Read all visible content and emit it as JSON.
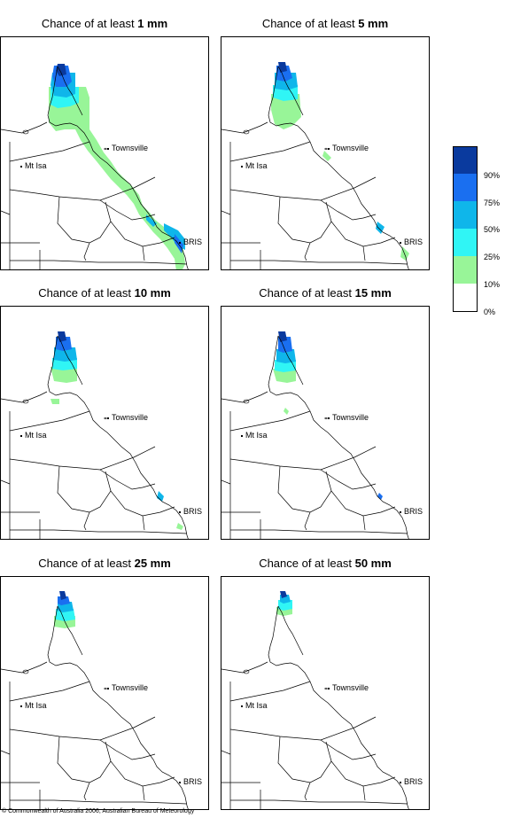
{
  "panels": [
    {
      "prefix": "Chance of at least ",
      "amount": "1 mm",
      "labels": {
        "townsville": "Townsville",
        "mtisa": "Mt Isa",
        "bris": "BRIS"
      }
    },
    {
      "prefix": "Chance of at least ",
      "amount": "5 mm",
      "labels": {
        "townsville": "Townsville",
        "mtisa": "Mt Isa",
        "bris": "BRIS"
      }
    },
    {
      "prefix": "Chance of at least ",
      "amount": "10 mm",
      "labels": {
        "townsville": "Townsville",
        "mtisa": "Mt Isa",
        "bris": "BRIS"
      }
    },
    {
      "prefix": "Chance of at least ",
      "amount": "15 mm",
      "labels": {
        "townsville": "Townsville",
        "mtisa": "Mt Isa",
        "bris": "BRIS"
      }
    },
    {
      "prefix": "Chance of at least ",
      "amount": "25 mm",
      "labels": {
        "townsville": "Townsville",
        "mtisa": "Mt Isa",
        "bris": "BRIS"
      }
    },
    {
      "prefix": "Chance of at least ",
      "amount": "50 mm",
      "labels": {
        "townsville": "Townsville",
        "mtisa": "Mt Isa",
        "bris": "BRIS"
      }
    }
  ],
  "legend": {
    "classes": [
      {
        "range": "> 90%",
        "color": "#0a3a9e"
      },
      {
        "range": "75-90%",
        "color": "#1a6ff0"
      },
      {
        "range": "50-75%",
        "color": "#0fb6ea"
      },
      {
        "range": "25-50%",
        "color": "#30f5f5"
      },
      {
        "range": "10-25%",
        "color": "#98f598"
      },
      {
        "range": "0-10%",
        "color": "#ffffff"
      }
    ],
    "ticks": [
      "90%",
      "75%",
      "50%",
      "25%",
      "10%",
      "0%"
    ]
  },
  "copyright": "© Commonwealth of Australia 2006, Australian Bureau of Meteorology"
}
